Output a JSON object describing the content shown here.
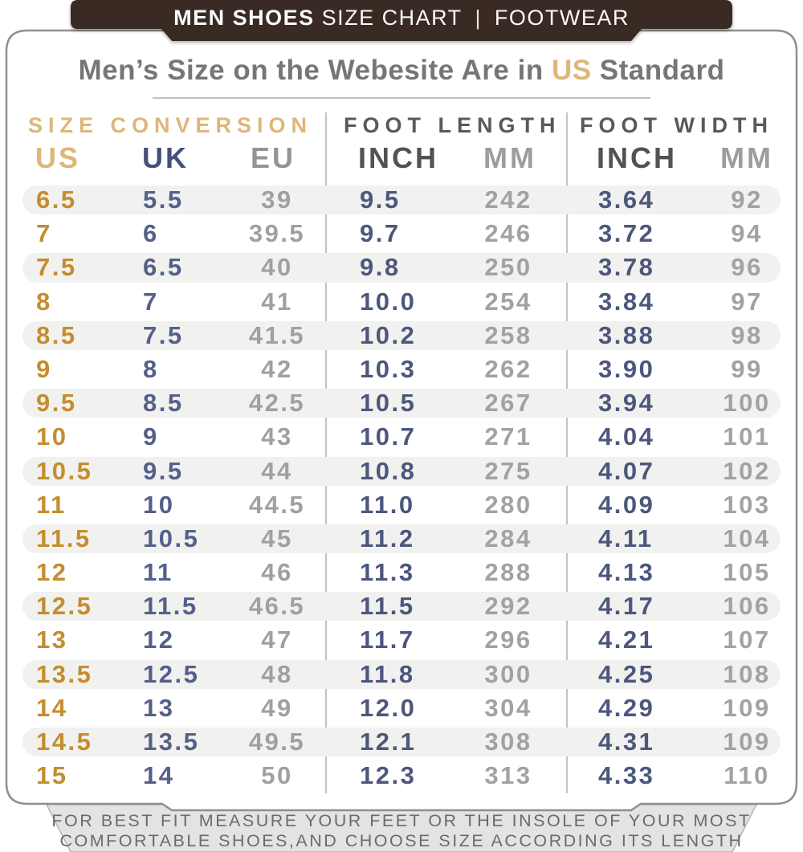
{
  "banner": {
    "title_bold": "MEN SHOES",
    "title_rest": " SIZE CHART",
    "separator": "|",
    "right_label": "FOOTWEAR"
  },
  "heading": {
    "prefix": "Men’s Size on the Webesite Are in ",
    "highlight": "US",
    "suffix": " Standard"
  },
  "footer": {
    "line1": "FOR BEST FIT MEASURE YOUR FEET OR THE INSOLE OF YOUR MOST",
    "line2": "COMFORTABLE SHOES,AND CHOOSE SIZE ACCORDING ITS LENGTH"
  },
  "colors": {
    "banner_brown": "#3a2a24",
    "accent_tan": "#ddb679",
    "gold_cell": "#c48d2e",
    "navy_header": "#45507a",
    "navy_cell": "#525e86",
    "gray_cell": "#9fa0a2",
    "row_band": "#f1f1ef",
    "footer_ribbon": "#e4e3e1",
    "card_border": "#8f8f8f"
  },
  "chart_data": {
    "type": "table",
    "title": "Men’s Size on the Webesite Are in US Standard",
    "column_groups": [
      {
        "label": "SIZE CONVERSION",
        "columns": [
          "US",
          "UK",
          "EU"
        ]
      },
      {
        "label": "FOOT LENGTH",
        "columns": [
          "INCH",
          "MM"
        ]
      },
      {
        "label": "FOOT WIDTH",
        "columns": [
          "INCH",
          "MM"
        ]
      }
    ],
    "column_keys": [
      "us",
      "uk",
      "eu",
      "inch-length",
      "mm-length",
      "inch-width",
      "mm-width"
    ],
    "rows": [
      [
        "6.5",
        "5.5",
        "39",
        "9.5",
        "242",
        "3.64",
        "92"
      ],
      [
        "7",
        "6",
        "39.5",
        "9.7",
        "246",
        "3.72",
        "94"
      ],
      [
        "7.5",
        "6.5",
        "40",
        "9.8",
        "250",
        "3.78",
        "96"
      ],
      [
        "8",
        "7",
        "41",
        "10.0",
        "254",
        "3.84",
        "97"
      ],
      [
        "8.5",
        "7.5",
        "41.5",
        "10.2",
        "258",
        "3.88",
        "98"
      ],
      [
        "9",
        "8",
        "42",
        "10.3",
        "262",
        "3.90",
        "99"
      ],
      [
        "9.5",
        "8.5",
        "42.5",
        "10.5",
        "267",
        "3.94",
        "100"
      ],
      [
        "10",
        "9",
        "43",
        "10.7",
        "271",
        "4.04",
        "101"
      ],
      [
        "10.5",
        "9.5",
        "44",
        "10.8",
        "275",
        "4.07",
        "102"
      ],
      [
        "11",
        "10",
        "44.5",
        "11.0",
        "280",
        "4.09",
        "103"
      ],
      [
        "11.5",
        "10.5",
        "45",
        "11.2",
        "284",
        "4.11",
        "104"
      ],
      [
        "12",
        "11",
        "46",
        "11.3",
        "288",
        "4.13",
        "105"
      ],
      [
        "12.5",
        "11.5",
        "46.5",
        "11.5",
        "292",
        "4.17",
        "106"
      ],
      [
        "13",
        "12",
        "47",
        "11.7",
        "296",
        "4.21",
        "107"
      ],
      [
        "13.5",
        "12.5",
        "48",
        "11.8",
        "300",
        "4.25",
        "108"
      ],
      [
        "14",
        "13",
        "49",
        "12.0",
        "304",
        "4.29",
        "109"
      ],
      [
        "14.5",
        "13.5",
        "49.5",
        "12.1",
        "308",
        "4.31",
        "109"
      ],
      [
        "15",
        "14",
        "50",
        "12.3",
        "313",
        "4.33",
        "110"
      ]
    ]
  }
}
